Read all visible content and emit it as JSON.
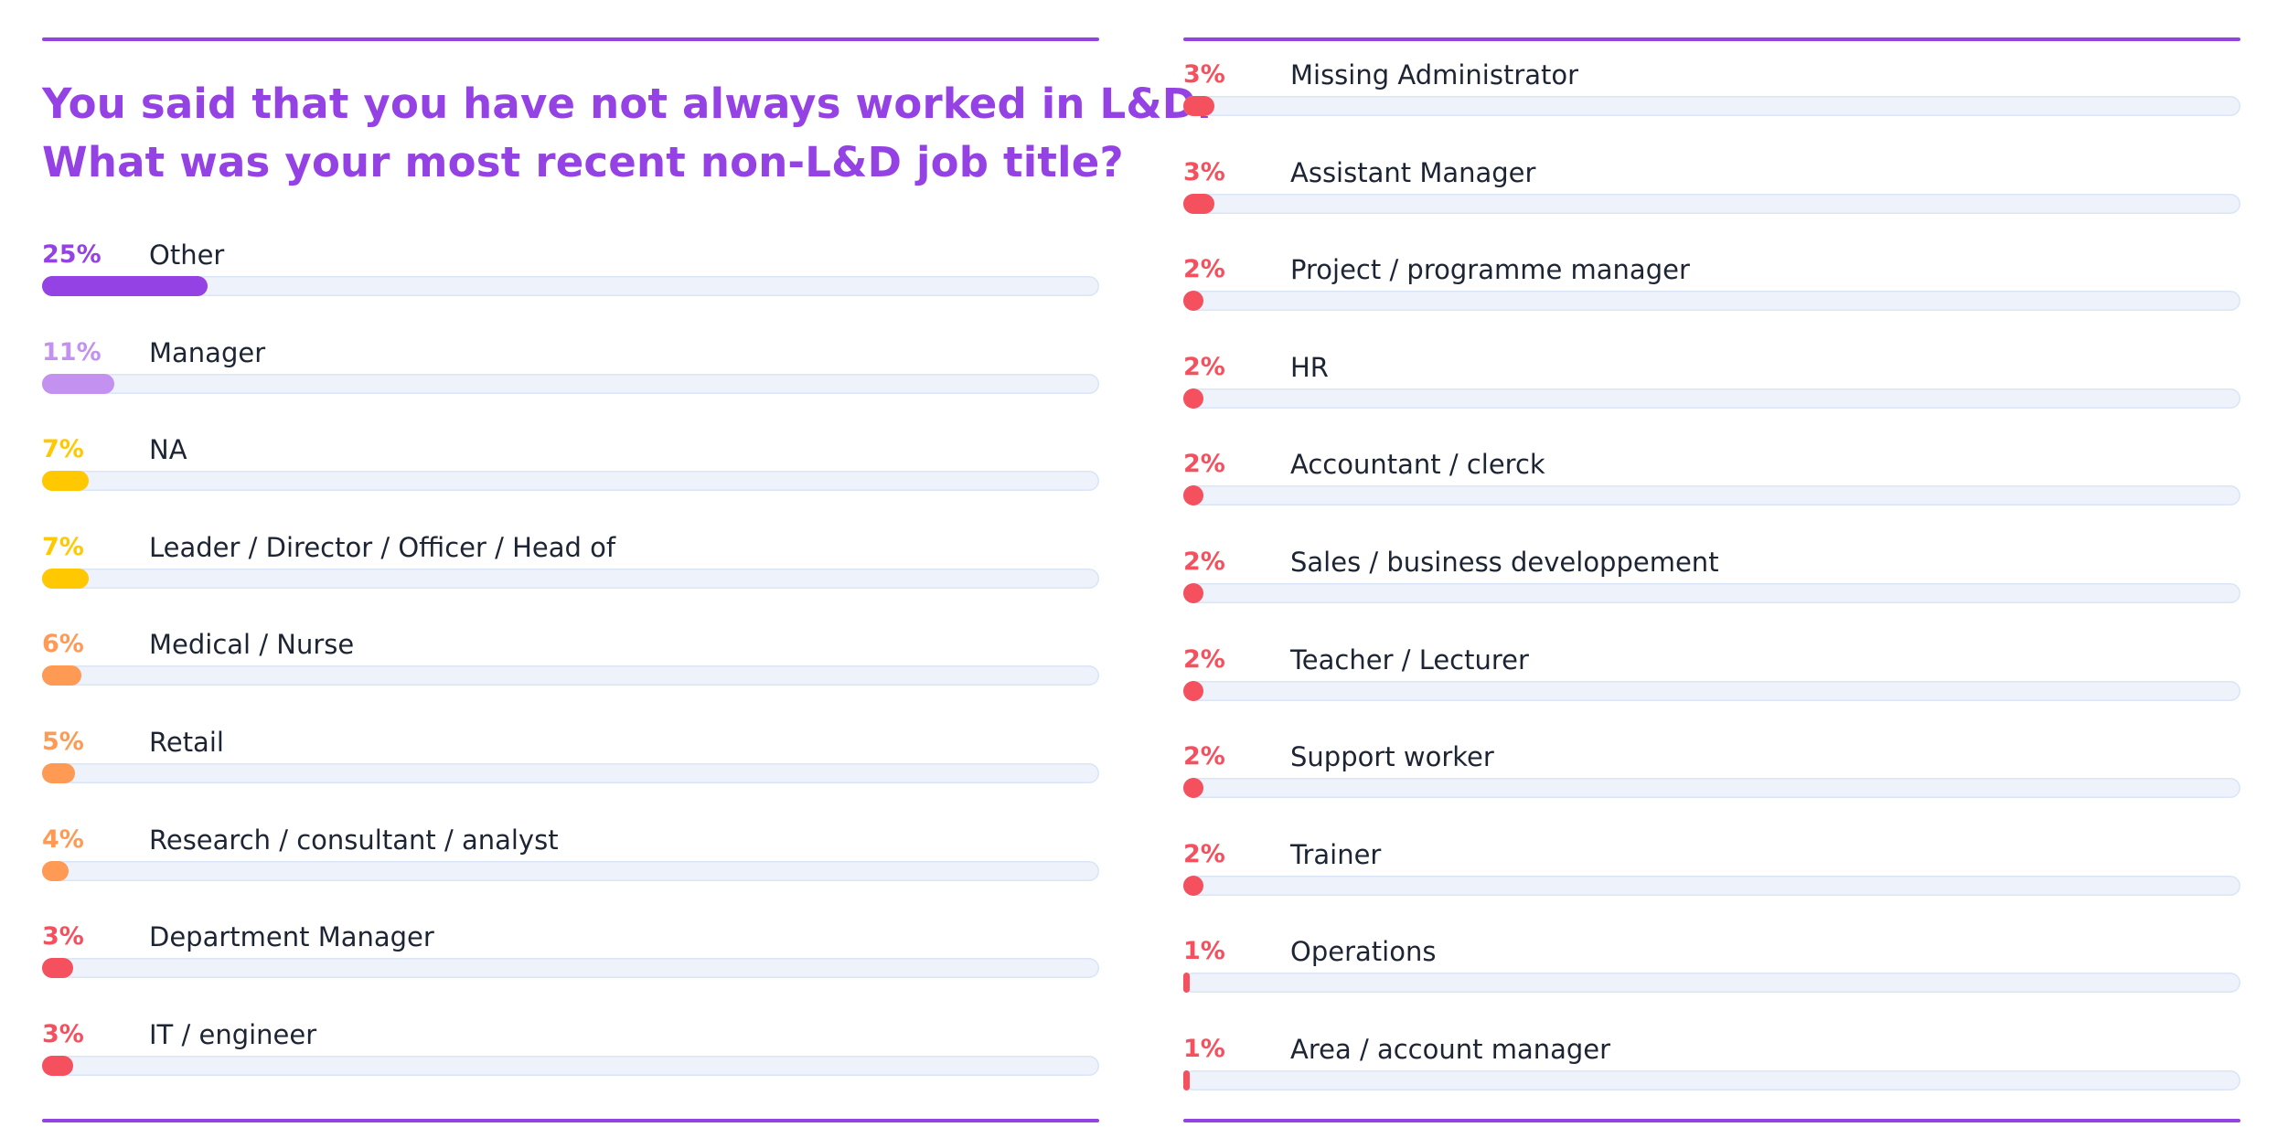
{
  "chart_data": {
    "type": "bar",
    "orientation": "horizontal",
    "title_lines": [
      "You said that you have not always worked in L&D.",
      "What was your most recent non-L&D job title?"
    ],
    "xlim": [
      0,
      100
    ],
    "colors": {
      "purple": "#9442e4",
      "lavender": "#c391ef",
      "yellow": "#ffc800",
      "orange": "#ff9a55",
      "red": "#f5505e",
      "track": "#edf2fb"
    },
    "columns": [
      {
        "bars": [
          {
            "category": "Other",
            "value": 25,
            "label": "25%",
            "color": "#9442e4"
          },
          {
            "category": "Manager",
            "value": 11,
            "label": "11%",
            "color": "#c391ef"
          },
          {
            "category": "NA",
            "value": 7,
            "label": "7%",
            "color": "#ffc800"
          },
          {
            "category": "Leader / Director / Officer / Head of",
            "value": 7,
            "label": "7%",
            "color": "#ffc800"
          },
          {
            "category": "Medical / Nurse",
            "value": 6,
            "label": "6%",
            "color": "#ff9a55"
          },
          {
            "category": "Retail",
            "value": 5,
            "label": "5%",
            "color": "#ff9a55"
          },
          {
            "category": "Research / consultant / analyst",
            "value": 4,
            "label": "4%",
            "color": "#ff9a55"
          },
          {
            "category": "Department Manager",
            "value": 3,
            "label": "3%",
            "color": "#f5505e"
          },
          {
            "category": "IT / engineer",
            "value": 3,
            "label": "3%",
            "color": "#f5505e"
          }
        ]
      },
      {
        "bars": [
          {
            "category": "Missing Administrator",
            "value": 3,
            "label": "3%",
            "color": "#f5505e"
          },
          {
            "category": "Assistant Manager",
            "value": 3,
            "label": "3%",
            "color": "#f5505e"
          },
          {
            "category": "Project / programme manager",
            "value": 2,
            "label": "2%",
            "color": "#f5505e"
          },
          {
            "category": "HR",
            "value": 2,
            "label": "2%",
            "color": "#f5505e"
          },
          {
            "category": "Accountant / clerck",
            "value": 2,
            "label": "2%",
            "color": "#f5505e"
          },
          {
            "category": "Sales / business developpement",
            "value": 2,
            "label": "2%",
            "color": "#f5505e"
          },
          {
            "category": "Teacher / Lecturer",
            "value": 2,
            "label": "2%",
            "color": "#f5505e"
          },
          {
            "category": "Support worker",
            "value": 2,
            "label": "2%",
            "color": "#f5505e"
          },
          {
            "category": "Trainer",
            "value": 2,
            "label": "2%",
            "color": "#f5505e"
          },
          {
            "category": "Operations",
            "value": 1,
            "label": "1%",
            "color": "#f5505e"
          },
          {
            "category": "Area / account manager",
            "value": 1,
            "label": "1%",
            "color": "#f5505e"
          }
        ]
      }
    ]
  }
}
